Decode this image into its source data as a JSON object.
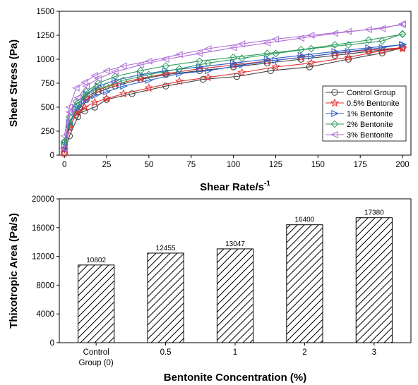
{
  "chart_data": [
    {
      "type": "line",
      "xlabel": "Shear Rate/s",
      "xlabel_sup": "-1",
      "ylabel": "Shear Stress (Pa)",
      "xlim": [
        -3,
        205
      ],
      "ylim": [
        0,
        1500
      ],
      "xticks": [
        0,
        25,
        50,
        75,
        100,
        125,
        150,
        175,
        200
      ],
      "yticks": [
        0,
        250,
        500,
        750,
        1000,
        1250,
        1500
      ],
      "legend_position": "lower-right",
      "series": [
        {
          "name": "Control Group",
          "color": "#3f3f3f",
          "marker": "circle",
          "up": [
            [
              0,
              20
            ],
            [
              3,
              200
            ],
            [
              8,
              400
            ],
            [
              13,
              580
            ],
            [
              20,
              660
            ],
            [
              30,
              720
            ],
            [
              45,
              790
            ],
            [
              60,
              840
            ],
            [
              80,
              880
            ],
            [
              100,
              920
            ],
            [
              120,
              960
            ],
            [
              140,
              1000
            ],
            [
              160,
              1040
            ],
            [
              180,
              1080
            ],
            [
              200,
              1120
            ]
          ],
          "down": [
            [
              200,
              1120
            ],
            [
              188,
              1065
            ],
            [
              168,
              1000
            ],
            [
              145,
              920
            ],
            [
              122,
              880
            ],
            [
              102,
              820
            ],
            [
              82,
              790
            ],
            [
              60,
              720
            ],
            [
              40,
              640
            ],
            [
              25,
              580
            ],
            [
              18,
              500
            ],
            [
              12,
              460
            ],
            [
              7,
              420
            ],
            [
              3,
              300
            ],
            [
              0,
              100
            ]
          ]
        },
        {
          "name": "0.5% Bentonite",
          "color": "#e03030",
          "marker": "star",
          "up": [
            [
              0,
              20
            ],
            [
              3,
              290
            ],
            [
              8,
              460
            ],
            [
              13,
              600
            ],
            [
              20,
              680
            ],
            [
              30,
              740
            ],
            [
              45,
              800
            ],
            [
              60,
              850
            ],
            [
              80,
              900
            ],
            [
              100,
              940
            ],
            [
              120,
              980
            ],
            [
              140,
              1020
            ],
            [
              160,
              1060
            ],
            [
              180,
              1095
            ],
            [
              200,
              1120
            ]
          ],
          "down": [
            [
              200,
              1110
            ],
            [
              188,
              1090
            ],
            [
              168,
              1020
            ],
            [
              146,
              960
            ],
            [
              125,
              920
            ],
            [
              105,
              860
            ],
            [
              85,
              810
            ],
            [
              68,
              770
            ],
            [
              50,
              700
            ],
            [
              35,
              640
            ],
            [
              25,
              590
            ],
            [
              18,
              550
            ],
            [
              12,
              500
            ],
            [
              7,
              440
            ],
            [
              3,
              280
            ],
            [
              0,
              60
            ]
          ]
        },
        {
          "name": "1% Bentonite",
          "color": "#2a60c8",
          "marker": "triangle-right",
          "up": [
            [
              0,
              60
            ],
            [
              3,
              320
            ],
            [
              8,
              500
            ],
            [
              13,
              640
            ],
            [
              20,
              720
            ],
            [
              30,
              780
            ],
            [
              45,
              840
            ],
            [
              60,
              880
            ],
            [
              80,
              920
            ],
            [
              100,
              960
            ],
            [
              120,
              1000
            ],
            [
              140,
              1040
            ],
            [
              160,
              1080
            ],
            [
              180,
              1120
            ],
            [
              200,
              1150
            ]
          ],
          "down": [
            [
              200,
              1155
            ],
            [
              188,
              1120
            ],
            [
              168,
              1080
            ],
            [
              146,
              1030
            ],
            [
              125,
              990
            ],
            [
              105,
              940
            ],
            [
              85,
              880
            ],
            [
              68,
              850
            ],
            [
              50,
              780
            ],
            [
              35,
              720
            ],
            [
              25,
              660
            ],
            [
              18,
              620
            ],
            [
              12,
              560
            ],
            [
              7,
              480
            ],
            [
              3,
              340
            ],
            [
              0,
              110
            ]
          ]
        },
        {
          "name": "2% Bentonite",
          "color": "#2e9e5e",
          "marker": "diamond",
          "up": [
            [
              0,
              130
            ],
            [
              3,
              330
            ],
            [
              8,
              520
            ],
            [
              13,
              660
            ],
            [
              20,
              750
            ],
            [
              30,
              820
            ],
            [
              45,
              880
            ],
            [
              60,
              930
            ],
            [
              80,
              980
            ],
            [
              100,
              1020
            ],
            [
              120,
              1060
            ],
            [
              140,
              1100
            ],
            [
              160,
              1150
            ],
            [
              180,
              1200
            ],
            [
              200,
              1260
            ]
          ],
          "down": [
            [
              200,
              1265
            ],
            [
              188,
              1190
            ],
            [
              168,
              1150
            ],
            [
              146,
              1110
            ],
            [
              125,
              1060
            ],
            [
              105,
              1010
            ],
            [
              85,
              960
            ],
            [
              68,
              900
            ],
            [
              50,
              840
            ],
            [
              35,
              780
            ],
            [
              25,
              720
            ],
            [
              18,
              680
            ],
            [
              12,
              620
            ],
            [
              7,
              560
            ],
            [
              3,
              400
            ],
            [
              0,
              140
            ]
          ]
        },
        {
          "name": "3% Bentonite",
          "color": "#b070d8",
          "marker": "triangle-left",
          "up": [
            [
              0,
              70
            ],
            [
              3,
              450
            ],
            [
              8,
              600
            ],
            [
              13,
              720
            ],
            [
              20,
              800
            ],
            [
              30,
              870
            ],
            [
              45,
              940
            ],
            [
              60,
              1000
            ],
            [
              80,
              1060
            ],
            [
              100,
              1120
            ],
            [
              120,
              1170
            ],
            [
              140,
              1220
            ],
            [
              160,
              1270
            ],
            [
              180,
              1310
            ],
            [
              200,
              1360
            ]
          ],
          "down": [
            [
              200,
              1370
            ],
            [
              188,
              1320
            ],
            [
              168,
              1290
            ],
            [
              146,
              1250
            ],
            [
              125,
              1210
            ],
            [
              105,
              1160
            ],
            [
              85,
              1110
            ],
            [
              68,
              1050
            ],
            [
              50,
              980
            ],
            [
              35,
              930
            ],
            [
              25,
              880
            ],
            [
              18,
              830
            ],
            [
              12,
              760
            ],
            [
              7,
              700
            ],
            [
              3,
              500
            ],
            [
              0,
              200
            ]
          ]
        }
      ]
    },
    {
      "type": "bar",
      "xlabel": "Bentonite Concentration (%)",
      "ylabel": "Thixotropic Area (Pa/s)",
      "ylim": [
        0,
        20000
      ],
      "yticks": [
        0,
        4000,
        8000,
        12000,
        16000,
        20000
      ],
      "categories": [
        [
          "Control",
          "Group (0)"
        ],
        [
          "0.5"
        ],
        [
          "1"
        ],
        [
          "2"
        ],
        [
          "3"
        ]
      ],
      "values": [
        10802,
        12455,
        13047,
        16400,
        17380
      ],
      "fill": "hatched"
    }
  ]
}
